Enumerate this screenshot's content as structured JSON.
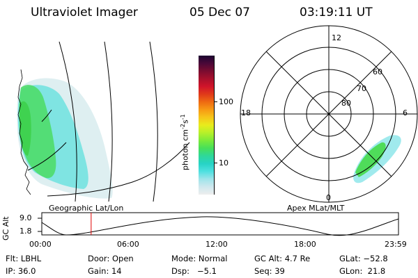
{
  "header": {
    "title": "Ultraviolet Imager",
    "date": "05 Dec 07",
    "time": "03:19:11 UT"
  },
  "left_panel": {
    "label": "Geographic Lat/Lon"
  },
  "right_panel": {
    "label": "Apex MLat/MLT",
    "mlt_labels": {
      "top": "12",
      "left": "18",
      "right": "6",
      "bottom": "0"
    },
    "lat_labels": [
      "60",
      "70",
      "80"
    ]
  },
  "colorbar": {
    "unit_label": "photon cm",
    "unit_exp1": "-2",
    "unit_mid": "s",
    "unit_exp2": "-1",
    "ticks": [
      "100",
      "10"
    ],
    "colors": [
      "#eeeeee",
      "#cfe8ee",
      "#9fe4ea",
      "#4fe0e0",
      "#27d3c6",
      "#2fd89a",
      "#46df5a",
      "#7bea3a",
      "#b6f02a",
      "#e8ec1c",
      "#f6c51a",
      "#f79a14",
      "#ee6a12",
      "#e03a1a",
      "#d0142a",
      "#a8102c",
      "#7a0c30",
      "#4a0838",
      "#1c0530"
    ]
  },
  "altitude_plot": {
    "ylabel": "GC Alt",
    "yticks": [
      "9.0",
      "1.8"
    ],
    "xticks": [
      "00:00",
      "06:00",
      "12:00",
      "18:00",
      "23:59"
    ],
    "marker_time_hours": 3.32
  },
  "info": {
    "row1": {
      "flt": "Flt: LBHL",
      "door": "Door: Open",
      "mode": "Mode: Normal",
      "gc_alt": "GC Alt: 4.7 Re",
      "glat": "GLat: −52.8"
    },
    "row2": {
      "ip": "IP: 36.0",
      "gain": "Gain: 14",
      "dsp": "Dsp:   −5.1",
      "seq": "Seq: 39",
      "glon": "GLon:  21.8"
    }
  }
}
